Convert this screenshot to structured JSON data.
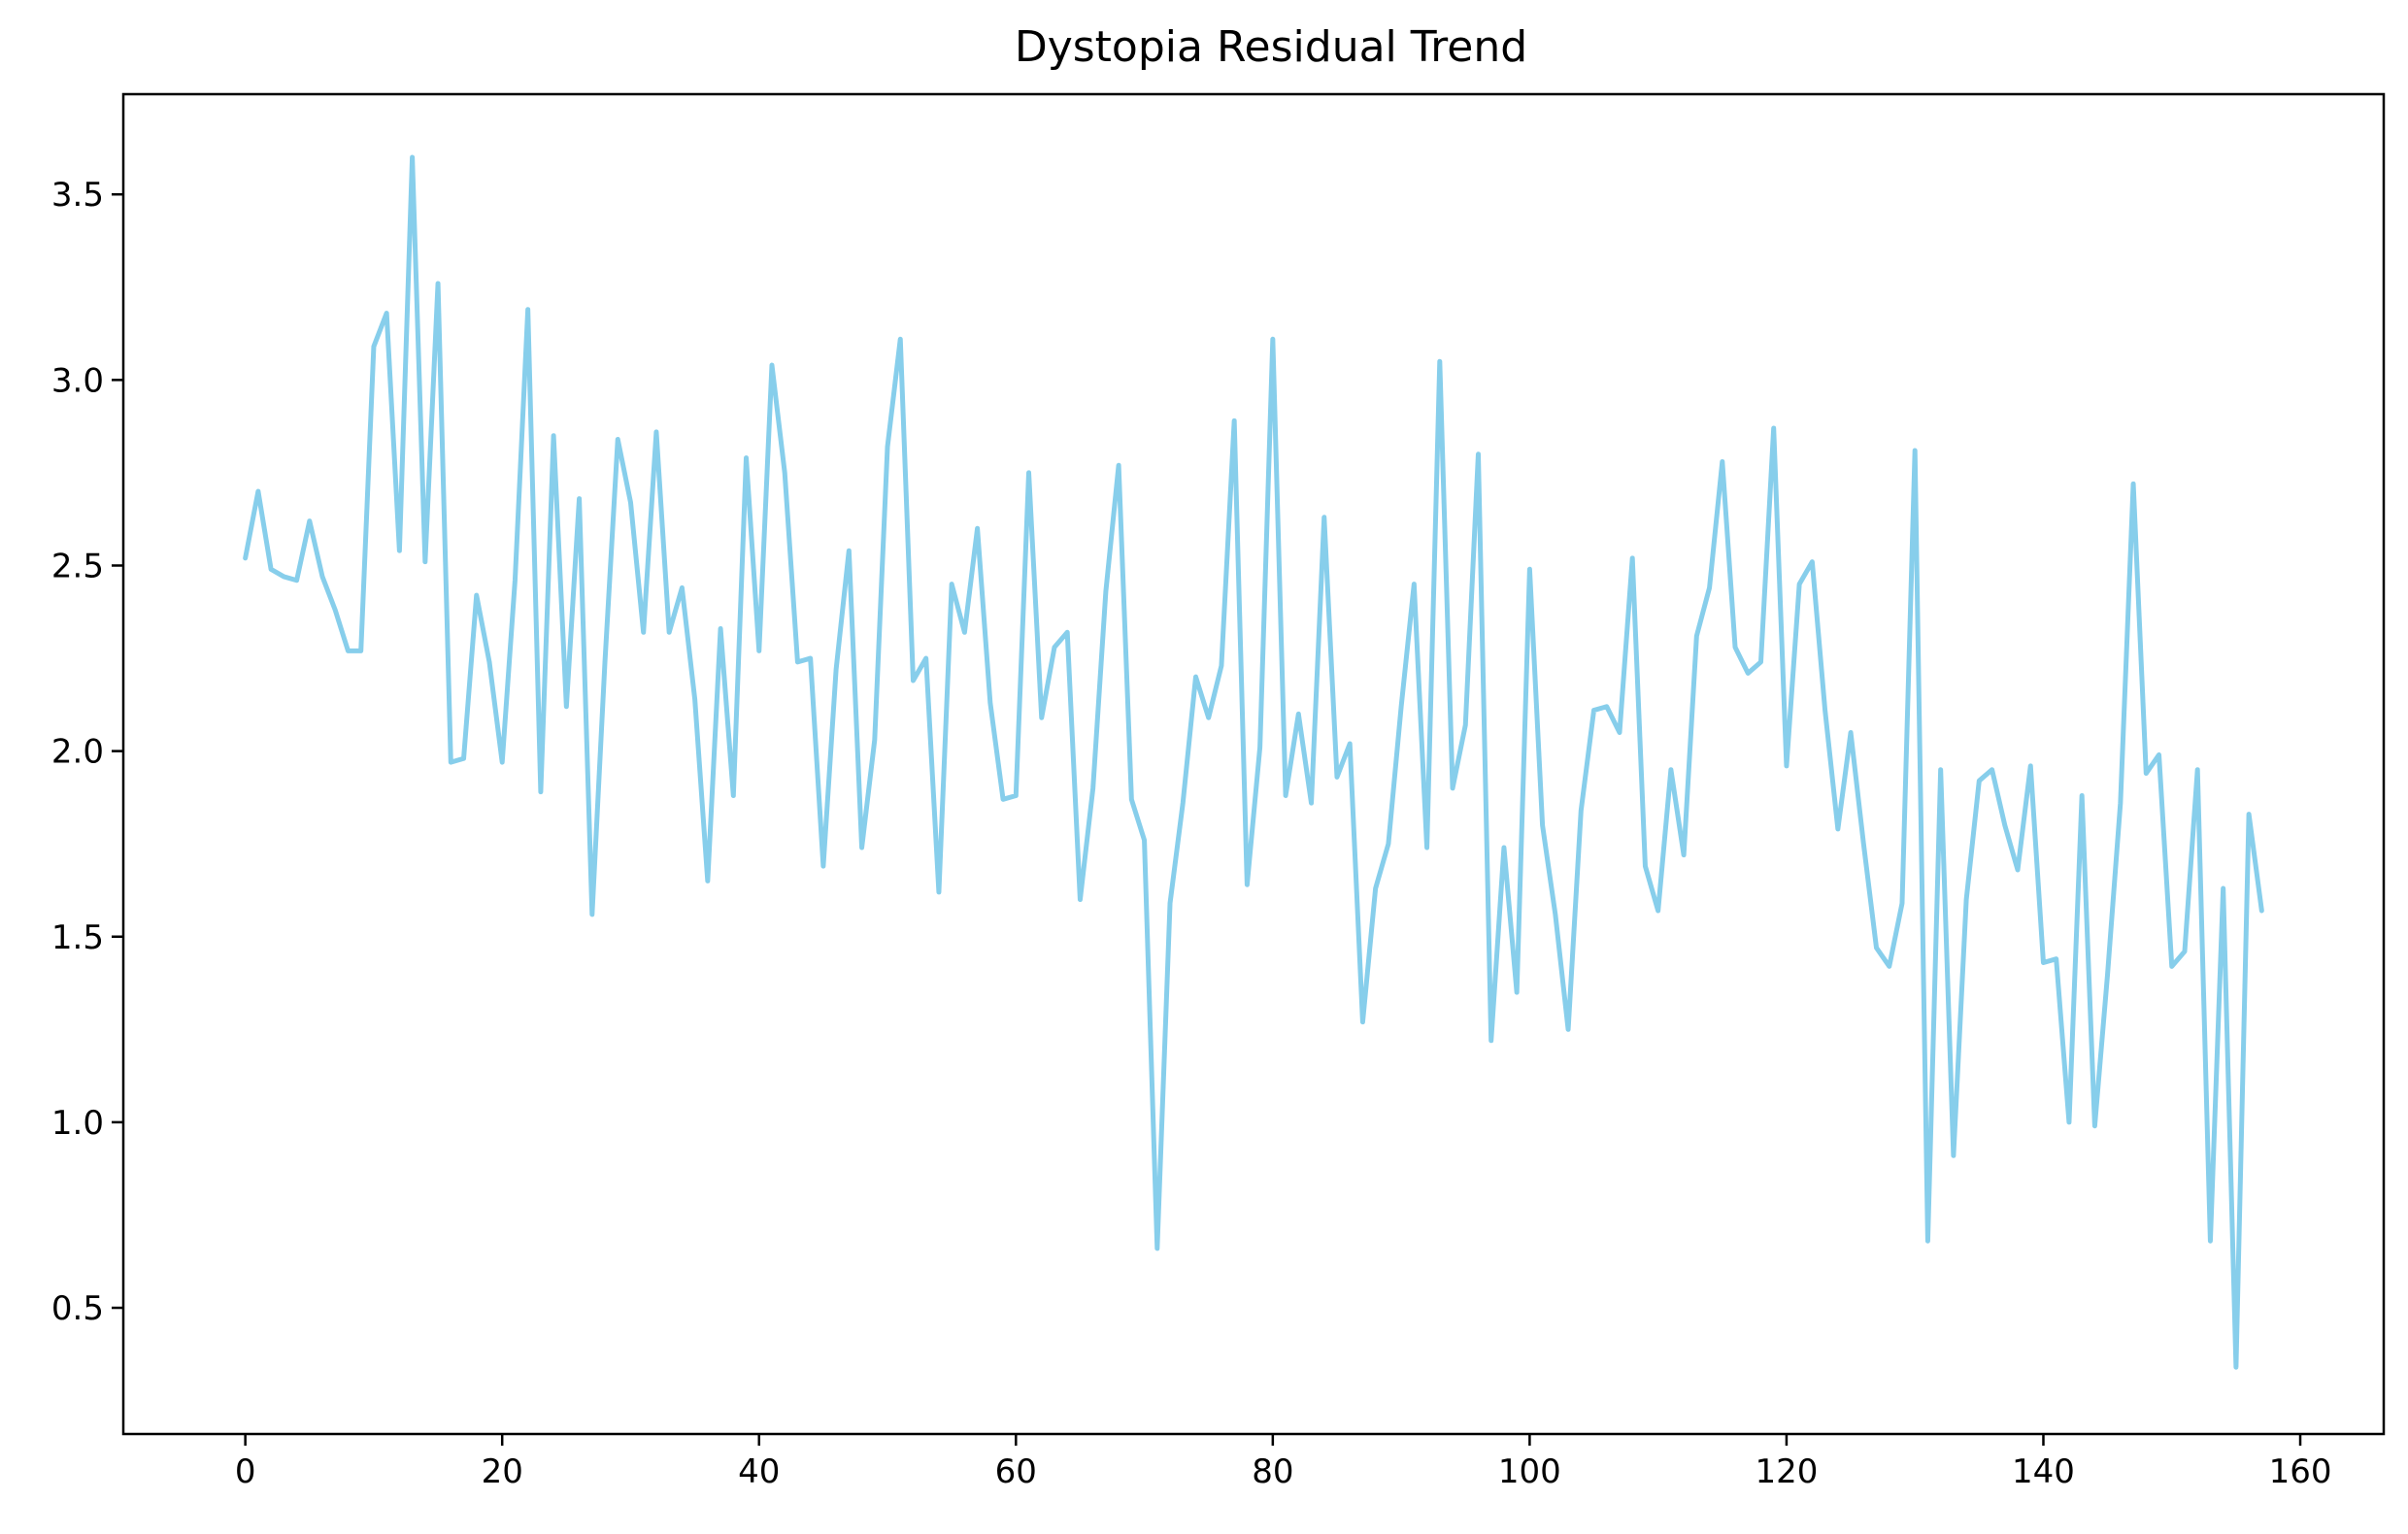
{
  "chart_data": {
    "type": "line",
    "title": "Dystopia Residual Trend",
    "xlabel": "",
    "ylabel": "",
    "xlim": [
      -9.5,
      166.5
    ],
    "ylim": [
      0.16,
      3.77
    ],
    "x_ticks": [
      0,
      20,
      40,
      60,
      80,
      100,
      120,
      140,
      160
    ],
    "y_ticks": [
      0.5,
      1.0,
      1.5,
      2.0,
      2.5,
      3.0,
      3.5
    ],
    "x_tick_labels": [
      "0",
      "20",
      "40",
      "60",
      "80",
      "100",
      "120",
      "140",
      "160"
    ],
    "y_tick_labels": [
      "0.5",
      "1.0",
      "1.5",
      "2.0",
      "2.5",
      "3.0",
      "3.5"
    ],
    "grid": false,
    "line_color": "#87CEEB",
    "series": [
      {
        "values": [
          2.52,
          2.7,
          2.49,
          2.47,
          2.46,
          2.62,
          2.47,
          2.38,
          2.27,
          2.27,
          3.09,
          3.18,
          2.54,
          3.6,
          2.51,
          3.26,
          1.97,
          1.98,
          2.42,
          2.24,
          1.97,
          2.46,
          3.19,
          1.89,
          2.85,
          2.12,
          2.68,
          1.56,
          2.24,
          2.84,
          2.67,
          2.32,
          2.86,
          2.32,
          2.44,
          2.14,
          1.65,
          2.33,
          1.88,
          2.79,
          2.27,
          3.04,
          2.75,
          2.24,
          2.25,
          1.69,
          2.22,
          2.54,
          1.74,
          2.03,
          2.82,
          3.11,
          2.19,
          2.25,
          1.62,
          2.45,
          2.32,
          2.6,
          2.13,
          1.87,
          1.88,
          2.75,
          2.09,
          2.28,
          2.32,
          1.6,
          1.9,
          2.43,
          2.77,
          1.87,
          1.76,
          0.66,
          1.59,
          1.86,
          2.2,
          2.09,
          2.23,
          2.89,
          1.64,
          2.01,
          3.11,
          1.88,
          2.1,
          1.86,
          2.63,
          1.93,
          2.02,
          1.27,
          1.63,
          1.75,
          2.12,
          2.45,
          1.74,
          3.05,
          1.9,
          2.07,
          2.8,
          1.22,
          1.74,
          1.35,
          2.49,
          1.8,
          1.56,
          1.25,
          1.84,
          2.11,
          2.12,
          2.05,
          2.52,
          1.69,
          1.57,
          1.95,
          1.72,
          2.31,
          2.44,
          2.78,
          2.28,
          2.21,
          2.24,
          2.87,
          1.96,
          2.45,
          2.51,
          2.11,
          1.79,
          2.05,
          1.75,
          1.47,
          1.42,
          1.59,
          2.81,
          0.68,
          1.95,
          0.91,
          1.6,
          1.92,
          1.95,
          1.8,
          1.68,
          1.96,
          1.43,
          1.44,
          1.0,
          1.88,
          0.99,
          1.4,
          1.86,
          2.72,
          1.94,
          1.99,
          1.42,
          1.46,
          1.95,
          0.68,
          1.63,
          0.34,
          1.83,
          1.57
        ]
      }
    ]
  }
}
